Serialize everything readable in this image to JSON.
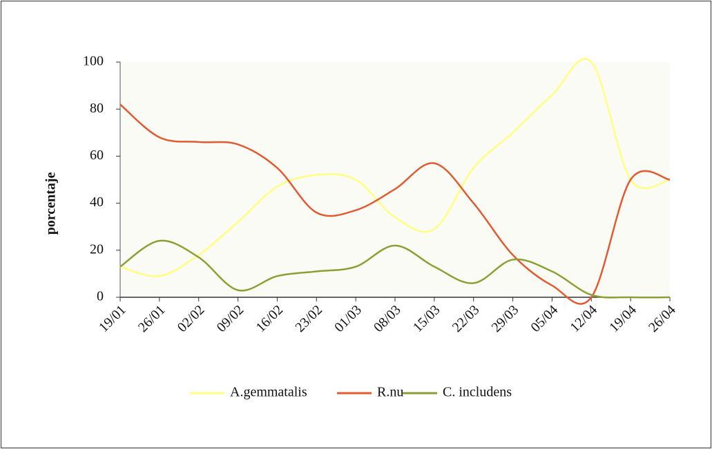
{
  "chart_data": {
    "type": "line",
    "y_label": "porcentaje",
    "categories": [
      "19/01",
      "26/01",
      "02/02",
      "09/02",
      "16/02",
      "23/02",
      "01/03",
      "08/03",
      "15/03",
      "22/03",
      "29/03",
      "05/04",
      "12/04",
      "19/04",
      "26/04"
    ],
    "series": [
      {
        "name": "A.gemmatalis",
        "color": "#ffff80",
        "values": [
          13,
          9,
          18,
          32,
          47,
          52,
          50,
          34,
          29,
          55,
          70,
          86,
          100,
          50,
          50
        ]
      },
      {
        "name": "R.nu",
        "color": "#e05a32",
        "values": [
          82,
          68,
          66,
          65,
          55,
          36,
          37,
          46,
          57,
          40,
          18,
          5,
          0,
          50,
          50
        ]
      },
      {
        "name": "C. includens",
        "color": "#8aa033",
        "values": [
          13,
          24,
          17,
          3,
          9,
          11,
          13,
          22,
          13,
          6,
          16,
          11,
          1,
          0,
          0
        ]
      }
    ],
    "ylim": [
      0,
      100
    ],
    "yticks": [
      0,
      20,
      40,
      60,
      80,
      100
    ],
    "smooth": true
  }
}
